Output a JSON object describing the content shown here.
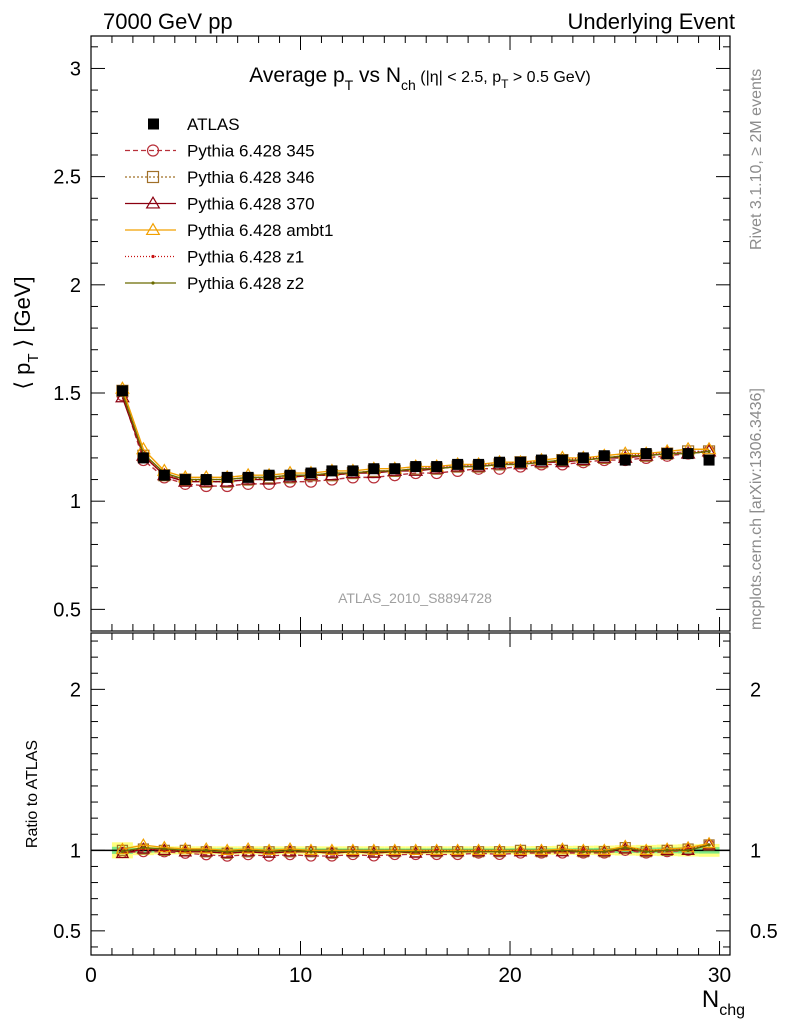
{
  "header": {
    "left": "7000 GeV pp",
    "right": "Underlying Event"
  },
  "side_labels": {
    "rivet": "Rivet 3.1.10, ≥ 2M events",
    "mcplots": "mcplots.cern.ch [arXiv:1306.3436]"
  },
  "chart_data": [
    {
      "type": "line",
      "title": {
        "base1": "Average p",
        "sub1": "T",
        "base2": " vs N",
        "sub2": "ch",
        "base3": " (|η| < 2.5, p",
        "sub3": "T",
        "base4": " > 0.5 GeV)"
      },
      "ylabel": {
        "pre": "⟨ p",
        "sub": "T",
        "post": " ⟩ [GeV]"
      },
      "reference_label": "ATLAS_2010_S8894728",
      "xlim": [
        0,
        30.5
      ],
      "ylim": [
        0.4,
        3.15
      ],
      "yticks": [
        0.5,
        1,
        1.5,
        2,
        2.5,
        3
      ],
      "ytick_labels": [
        "0.5",
        "1",
        "1.5",
        "2",
        "2.5",
        "3"
      ],
      "legend_position": "top-left",
      "x": [
        1.5,
        2.5,
        3.5,
        4.5,
        5.5,
        6.5,
        7.5,
        8.5,
        9.5,
        10.5,
        11.5,
        12.5,
        13.5,
        14.5,
        15.5,
        16.5,
        17.5,
        18.5,
        19.5,
        20.5,
        21.5,
        22.5,
        23.5,
        24.5,
        25.5,
        26.5,
        27.5,
        28.5,
        29.5
      ],
      "data": {
        "name": "ATLAS",
        "color": "#000000",
        "values": [
          1.51,
          1.2,
          1.12,
          1.1,
          1.1,
          1.11,
          1.11,
          1.12,
          1.12,
          1.13,
          1.14,
          1.14,
          1.15,
          1.15,
          1.16,
          1.16,
          1.17,
          1.17,
          1.18,
          1.18,
          1.19,
          1.19,
          1.2,
          1.21,
          1.19,
          1.22,
          1.22,
          1.22,
          1.19
        ]
      },
      "series": [
        {
          "name": "Pythia 6.428 345",
          "color": "#b8303a",
          "dash": "5,3",
          "marker": "circle",
          "values": [
            1.49,
            1.19,
            1.11,
            1.08,
            1.07,
            1.07,
            1.08,
            1.08,
            1.09,
            1.09,
            1.1,
            1.11,
            1.11,
            1.12,
            1.13,
            1.13,
            1.14,
            1.15,
            1.15,
            1.16,
            1.17,
            1.17,
            1.18,
            1.19,
            1.19,
            1.2,
            1.21,
            1.22,
            1.23
          ]
        },
        {
          "name": "Pythia 6.428 346",
          "color": "#a07028",
          "dash": "2,2",
          "marker": "square",
          "values": [
            1.51,
            1.21,
            1.12,
            1.1,
            1.09,
            1.09,
            1.1,
            1.11,
            1.11,
            1.12,
            1.12,
            1.13,
            1.14,
            1.14,
            1.15,
            1.15,
            1.16,
            1.16,
            1.17,
            1.18,
            1.18,
            1.19,
            1.19,
            1.2,
            1.21,
            1.21,
            1.22,
            1.23,
            1.23
          ]
        },
        {
          "name": "Pythia 6.428 370",
          "color": "#8b0010",
          "dash": "",
          "marker": "triangle",
          "values": [
            1.48,
            1.21,
            1.12,
            1.09,
            1.09,
            1.09,
            1.1,
            1.1,
            1.11,
            1.12,
            1.12,
            1.13,
            1.13,
            1.14,
            1.14,
            1.15,
            1.16,
            1.16,
            1.17,
            1.17,
            1.18,
            1.18,
            1.19,
            1.2,
            1.2,
            1.21,
            1.22,
            1.22,
            1.23
          ]
        },
        {
          "name": "Pythia 6.428 ambt1",
          "color": "#f2a000",
          "dash": "",
          "marker": "triangle-open",
          "values": [
            1.52,
            1.24,
            1.14,
            1.11,
            1.11,
            1.11,
            1.12,
            1.12,
            1.13,
            1.13,
            1.14,
            1.14,
            1.15,
            1.15,
            1.16,
            1.16,
            1.17,
            1.17,
            1.18,
            1.18,
            1.19,
            1.2,
            1.2,
            1.21,
            1.22,
            1.22,
            1.23,
            1.24,
            1.24
          ]
        },
        {
          "name": "Pythia 6.428 z1",
          "color": "#c81010",
          "dash": "1,2",
          "marker": "dot",
          "values": [
            1.5,
            1.21,
            1.12,
            1.1,
            1.1,
            1.1,
            1.11,
            1.11,
            1.12,
            1.12,
            1.13,
            1.13,
            1.14,
            1.14,
            1.15,
            1.16,
            1.16,
            1.17,
            1.17,
            1.18,
            1.18,
            1.19,
            1.2,
            1.2,
            1.21,
            1.22,
            1.22,
            1.23,
            1.23
          ]
        },
        {
          "name": "Pythia 6.428 z2",
          "color": "#6b6b00",
          "dash": "",
          "marker": "dot",
          "values": [
            1.5,
            1.22,
            1.13,
            1.1,
            1.1,
            1.1,
            1.11,
            1.11,
            1.12,
            1.12,
            1.13,
            1.13,
            1.14,
            1.14,
            1.15,
            1.15,
            1.16,
            1.16,
            1.17,
            1.17,
            1.18,
            1.19,
            1.19,
            1.2,
            1.21,
            1.21,
            1.22,
            1.22,
            1.23
          ]
        }
      ]
    },
    {
      "type": "line",
      "ylabel": "Ratio to ATLAS",
      "xlabel": {
        "base": "N",
        "sub": "chg"
      },
      "xlim": [
        0,
        30.5
      ],
      "ylim": [
        0.35,
        2.35
      ],
      "xticks": [
        0,
        10,
        20,
        30
      ],
      "xtick_labels": [
        "0",
        "10",
        "20",
        "30"
      ],
      "yticks": [
        0.5,
        1,
        2
      ],
      "ytick_labels": [
        "0.5",
        "1",
        "2"
      ],
      "band_inner": [
        0.022,
        0.014,
        0.012,
        0.012,
        0.012,
        0.012,
        0.012,
        0.012,
        0.012,
        0.012,
        0.012,
        0.012,
        0.012,
        0.012,
        0.012,
        0.012,
        0.012,
        0.012,
        0.012,
        0.013,
        0.013,
        0.013,
        0.014,
        0.015,
        0.016,
        0.017,
        0.018,
        0.019,
        0.02
      ],
      "band_outer": [
        0.05,
        0.03,
        0.025,
        0.025,
        0.025,
        0.025,
        0.025,
        0.025,
        0.025,
        0.025,
        0.025,
        0.025,
        0.025,
        0.025,
        0.025,
        0.025,
        0.025,
        0.025,
        0.026,
        0.026,
        0.027,
        0.028,
        0.029,
        0.03,
        0.032,
        0.034,
        0.036,
        0.038,
        0.04
      ]
    }
  ]
}
